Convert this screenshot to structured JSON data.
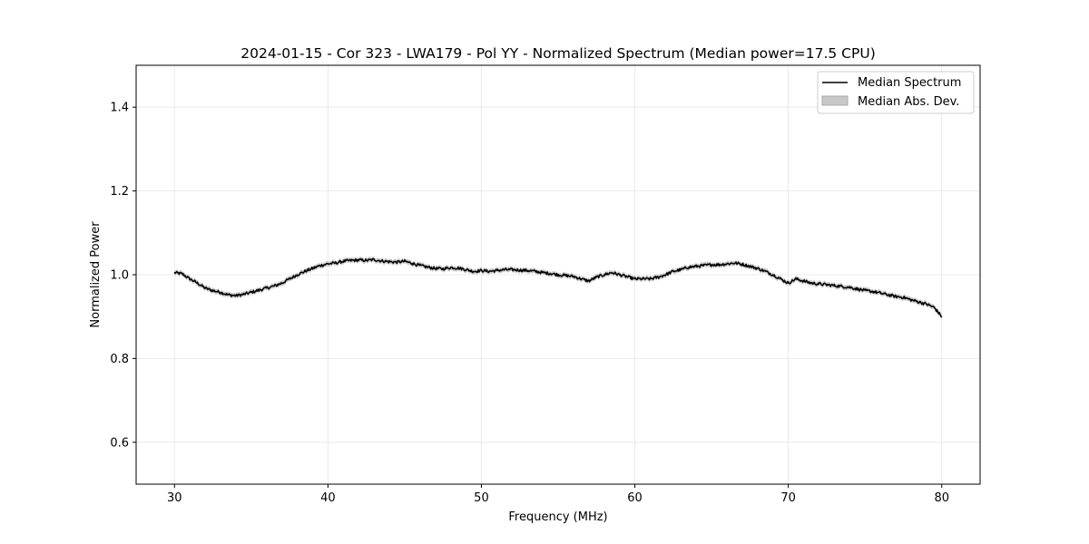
{
  "chart_data": {
    "type": "line",
    "title": "2024-01-15 - Cor 323 - LWA179 - Pol YY - Normalized Spectrum (Median power=17.5 CPU)",
    "xlabel": "Frequency (MHz)",
    "ylabel": "Normalized Power",
    "xlim": [
      27.5,
      82.5
    ],
    "ylim": [
      0.5,
      1.5
    ],
    "xticks": [
      30,
      40,
      50,
      60,
      70,
      80
    ],
    "yticks": [
      0.6,
      0.8,
      1.0,
      1.2,
      1.4
    ],
    "xtick_labels": [
      "30",
      "40",
      "50",
      "60",
      "70",
      "80"
    ],
    "ytick_labels": [
      "0.6",
      "0.8",
      "1.0",
      "1.2",
      "1.4"
    ],
    "grid": true,
    "legend": {
      "location": "top-right",
      "entries": [
        {
          "label": "Median Spectrum",
          "kind": "line",
          "color": "#000000"
        },
        {
          "label": "Median Abs. Dev.",
          "kind": "band",
          "color": "#c8c8c8"
        }
      ]
    },
    "series": [
      {
        "name": "Median Spectrum",
        "color": "#000000",
        "mad": 0.006,
        "x": [
          30.0,
          30.5,
          31.0,
          31.5,
          32.0,
          32.5,
          33.0,
          33.5,
          34.0,
          34.5,
          35.0,
          35.5,
          36.0,
          36.5,
          37.0,
          37.5,
          38.0,
          38.5,
          39.0,
          39.5,
          40.0,
          40.5,
          41.0,
          41.5,
          42.0,
          42.5,
          43.0,
          43.5,
          44.0,
          44.5,
          45.0,
          45.5,
          46.0,
          46.5,
          47.0,
          47.5,
          48.0,
          48.5,
          49.0,
          49.5,
          50.0,
          50.5,
          51.0,
          51.5,
          52.0,
          52.5,
          53.0,
          53.5,
          54.0,
          54.5,
          55.0,
          55.5,
          56.0,
          56.5,
          57.0,
          57.5,
          58.0,
          58.5,
          59.0,
          59.5,
          60.0,
          60.5,
          61.0,
          61.5,
          62.0,
          62.5,
          63.0,
          63.5,
          64.0,
          64.5,
          65.0,
          65.5,
          66.0,
          66.5,
          67.0,
          67.5,
          68.0,
          68.5,
          69.0,
          69.5,
          70.0,
          70.5,
          71.0,
          71.5,
          72.0,
          72.5,
          73.0,
          73.5,
          74.0,
          74.5,
          75.0,
          75.5,
          76.0,
          76.5,
          77.0,
          77.5,
          78.0,
          78.5,
          79.0,
          79.5,
          80.0
        ],
        "y": [
          1.005,
          1.002,
          0.99,
          0.98,
          0.968,
          0.962,
          0.958,
          0.952,
          0.95,
          0.953,
          0.958,
          0.963,
          0.968,
          0.973,
          0.98,
          0.99,
          1.0,
          1.008,
          1.015,
          1.022,
          1.026,
          1.028,
          1.032,
          1.034,
          1.035,
          1.034,
          1.036,
          1.033,
          1.031,
          1.03,
          1.032,
          1.027,
          1.022,
          1.018,
          1.015,
          1.014,
          1.017,
          1.016,
          1.012,
          1.008,
          1.01,
          1.008,
          1.01,
          1.012,
          1.012,
          1.011,
          1.01,
          1.008,
          1.005,
          1.003,
          1.0,
          0.998,
          0.996,
          0.99,
          0.985,
          0.994,
          1.0,
          1.005,
          1.0,
          0.995,
          0.99,
          0.99,
          0.99,
          0.994,
          1.0,
          1.008,
          1.012,
          1.018,
          1.02,
          1.022,
          1.024,
          1.024,
          1.026,
          1.028,
          1.025,
          1.02,
          1.015,
          1.008,
          1.0,
          0.99,
          0.98,
          0.99,
          0.985,
          0.98,
          0.978,
          0.976,
          0.974,
          0.972,
          0.97,
          0.966,
          0.962,
          0.96,
          0.956,
          0.952,
          0.948,
          0.946,
          0.94,
          0.935,
          0.93,
          0.922,
          0.9
        ]
      }
    ]
  }
}
